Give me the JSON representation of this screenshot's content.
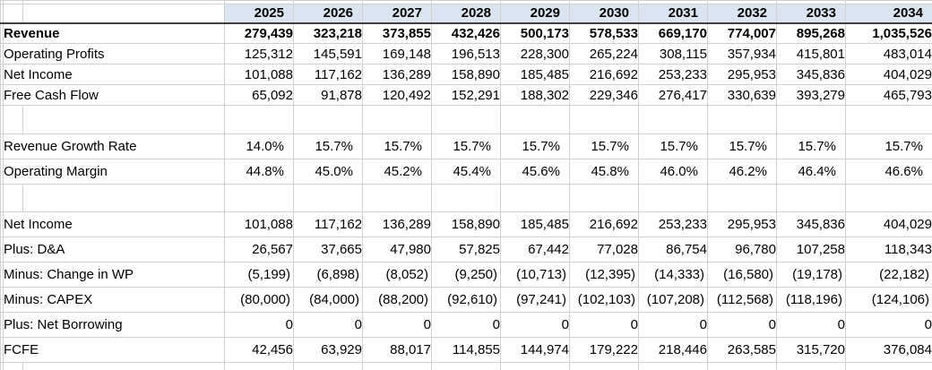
{
  "app": {
    "description_label": "Financial projection spreadsheet"
  },
  "colors": {
    "header_fill": "#dbe5f1",
    "gridline": "#d0d0d0",
    "dark_border": "#3f3f3f",
    "text": "#000000"
  },
  "table": {
    "years": [
      "2025",
      "2026",
      "2027",
      "2028",
      "2029",
      "2030",
      "2031",
      "2032",
      "2033",
      "2034"
    ],
    "rows": [
      {
        "kind": "spacer"
      },
      {
        "kind": "header"
      },
      {
        "kind": "data",
        "bold": true,
        "label": "Revenue",
        "values": [
          "279,439",
          "323,218",
          "373,855",
          "432,426",
          "500,173",
          "578,533",
          "669,170",
          "774,007",
          "895,268",
          "1,035,526"
        ]
      },
      {
        "kind": "data",
        "label": "Operating Profits",
        "values": [
          "125,312",
          "145,591",
          "169,148",
          "196,513",
          "228,300",
          "265,224",
          "308,115",
          "357,934",
          "415,801",
          "483,014"
        ]
      },
      {
        "kind": "data",
        "label": "Net Income",
        "values": [
          "101,088",
          "117,162",
          "136,289",
          "158,890",
          "185,485",
          "216,692",
          "253,233",
          "295,953",
          "345,836",
          "404,029"
        ]
      },
      {
        "kind": "data",
        "label": "Free Cash Flow",
        "values": [
          "65,092",
          "91,878",
          "120,492",
          "152,291",
          "188,302",
          "229,346",
          "276,417",
          "330,639",
          "393,279",
          "465,793"
        ]
      },
      {
        "kind": "spacer"
      },
      {
        "kind": "data",
        "label": "Revenue Growth Rate",
        "values": [
          "14.0%",
          "15.7%",
          "15.7%",
          "15.7%",
          "15.7%",
          "15.7%",
          "15.7%",
          "15.7%",
          "15.7%",
          "15.7%"
        ]
      },
      {
        "kind": "data",
        "label": "Operating Margin",
        "values": [
          "44.8%",
          "45.0%",
          "45.2%",
          "45.4%",
          "45.6%",
          "45.8%",
          "46.0%",
          "46.2%",
          "46.4%",
          "46.6%"
        ]
      },
      {
        "kind": "spacer"
      },
      {
        "kind": "data",
        "label": "Net Income",
        "values": [
          "101,088",
          "117,162",
          "136,289",
          "158,890",
          "185,485",
          "216,692",
          "253,233",
          "295,953",
          "345,836",
          "404,029"
        ]
      },
      {
        "kind": "data",
        "label": "Plus: D&A",
        "values": [
          "26,567",
          "37,665",
          "47,980",
          "57,825",
          "67,442",
          "77,028",
          "86,754",
          "96,780",
          "107,258",
          "118,343"
        ]
      },
      {
        "kind": "data",
        "label": "Minus: Change in WP",
        "values": [
          "(5,199)",
          "(6,898)",
          "(8,052)",
          "(9,250)",
          "(10,713)",
          "(12,395)",
          "(14,333)",
          "(16,580)",
          "(19,178)",
          "(22,182)"
        ]
      },
      {
        "kind": "data",
        "label": "Minus: CAPEX",
        "values": [
          "(80,000)",
          "(84,000)",
          "(88,200)",
          "(92,610)",
          "(97,241)",
          "(102,103)",
          "(107,208)",
          "(112,568)",
          "(118,196)",
          "(124,106)"
        ]
      },
      {
        "kind": "data",
        "label": "Plus: Net Borrowing",
        "values": [
          "0",
          "0",
          "0",
          "0",
          "0",
          "0",
          "0",
          "0",
          "0",
          "0"
        ]
      },
      {
        "kind": "data",
        "label": "FCFE",
        "values": [
          "42,456",
          "63,929",
          "88,017",
          "114,855",
          "144,974",
          "179,222",
          "218,446",
          "263,585",
          "315,720",
          "376,084"
        ]
      },
      {
        "kind": "spacer"
      }
    ]
  }
}
